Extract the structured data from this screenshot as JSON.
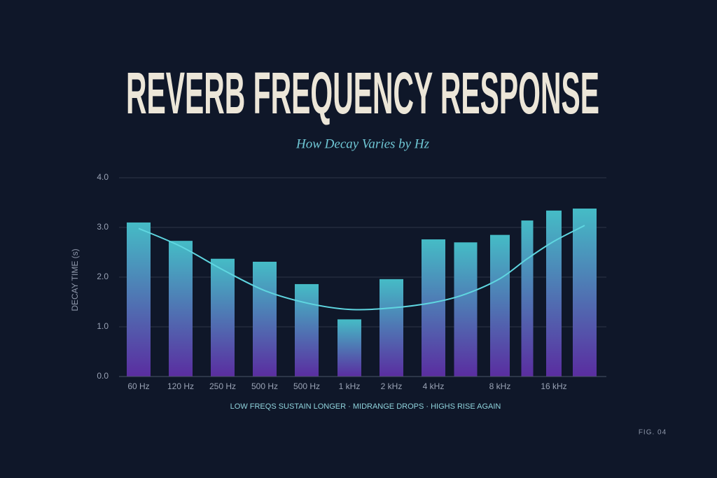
{
  "chart_data": {
    "type": "bar",
    "title": "REVERB FREQUENCY RESPONSE",
    "subtitle": "How Decay Varies by Hz",
    "y_label": "DECAY TIME (s)",
    "note": "LOW FREQS SUSTAIN LONGER · MIDRANGE DROPS · HIGHS RISE AGAIN",
    "figure_label": "FIG. 04",
    "categories": [
      "60 Hz",
      "120 Hz",
      "250 Hz",
      "500 Hz",
      "500 Hz",
      "1 kHz",
      "2 kHz",
      "4 kHz",
      null,
      "8 kHz",
      null,
      "16 kHz",
      null
    ],
    "values": [
      3.1,
      2.73,
      2.37,
      2.31,
      1.86,
      1.15,
      1.96,
      2.76,
      2.7,
      2.85,
      3.14,
      3.34,
      3.38
    ],
    "trend_values": [
      2.98,
      2.62,
      2.15,
      1.73,
      1.48,
      1.35,
      1.38,
      1.49,
      1.66,
      1.97,
      2.37,
      2.72,
      3.04
    ],
    "color_top": "#45bcc6",
    "color_bottom": "#5a2da0",
    "trend_color": "#5fd6e0",
    "ylim": [
      0,
      4
    ],
    "yticks": [
      {
        "value": 0,
        "label": "0.0"
      },
      {
        "value": 1,
        "label": "1.0"
      },
      {
        "value": 2,
        "label": "2.0"
      },
      {
        "value": 3,
        "label": "3.0"
      },
      {
        "value": 4,
        "label": "4.0"
      }
    ],
    "grid": true
  }
}
